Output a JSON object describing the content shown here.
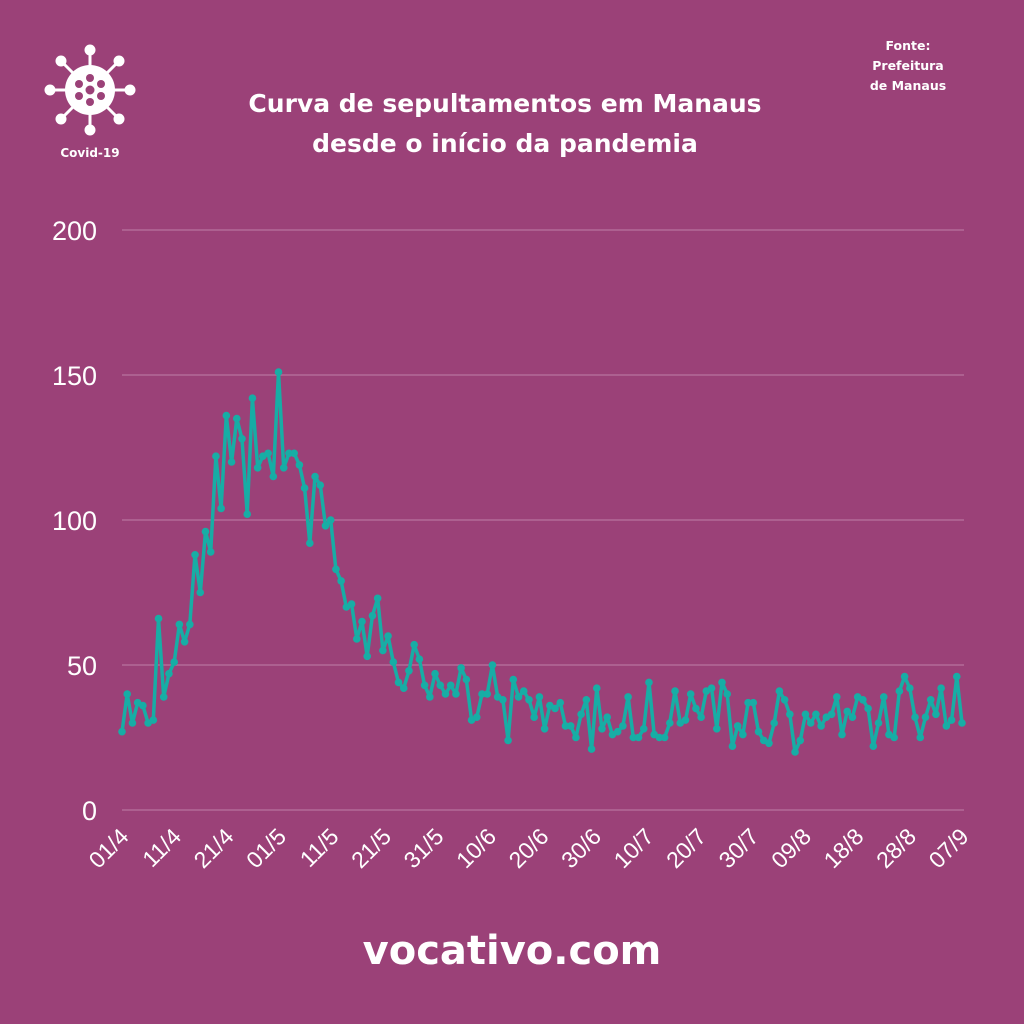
{
  "header": {
    "title_line1": "Curva de sepultamentos em Manaus",
    "title_line2": "desde o início da pandemia",
    "source_line1": "Fonte:",
    "source_line2": "Prefeitura",
    "source_line3": "de Manaus",
    "logo_label": "Covid-19",
    "logo_icon": "virus-icon"
  },
  "footer": {
    "site": "vocativo.com"
  },
  "colors": {
    "background": "#9b4178",
    "line": "#17ada5",
    "grid": "#b36a98",
    "text": "#ffffff"
  },
  "chart_data": {
    "type": "line",
    "title": "Curva de sepultamentos em Manaus desde o início da pandemia",
    "xlabel": "",
    "ylabel": "",
    "ylim": [
      0,
      200
    ],
    "yticks": [
      "0",
      "50",
      "100",
      "150",
      "200"
    ],
    "ytick_values": [
      0,
      50,
      100,
      150,
      200
    ],
    "xtick_labels": [
      "01/4",
      "11/4",
      "21/4",
      "01/5",
      "11/5",
      "21/5",
      "31/5",
      "10/6",
      "20/6",
      "30/6",
      "10/7",
      "20/7",
      "30/7",
      "09/8",
      "18/8",
      "28/8",
      "07/9"
    ],
    "grid": true,
    "series": [
      {
        "name": "Sepultamentos",
        "values": [
          27,
          40,
          30,
          37,
          36,
          30,
          31,
          66,
          39,
          47,
          51,
          64,
          58,
          64,
          88,
          75,
          96,
          89,
          122,
          104,
          136,
          120,
          135,
          128,
          102,
          142,
          118,
          122,
          123,
          115,
          151,
          118,
          123,
          123,
          119,
          111,
          92,
          115,
          112,
          98,
          100,
          83,
          79,
          70,
          71,
          59,
          65,
          53,
          67,
          73,
          55,
          60,
          51,
          44,
          42,
          48,
          57,
          52,
          43,
          39,
          47,
          43,
          40,
          43,
          40,
          49,
          45,
          31,
          32,
          40,
          40,
          50,
          39,
          38,
          24,
          45,
          39,
          41,
          38,
          32,
          39,
          28,
          36,
          35,
          37,
          29,
          29,
          25,
          33,
          38,
          21,
          42,
          28,
          32,
          26,
          27,
          29,
          39,
          25,
          25,
          28,
          44,
          26,
          25,
          25,
          30,
          41,
          30,
          31,
          40,
          35,
          32,
          41,
          42,
          28,
          44,
          40,
          22,
          29,
          26,
          37,
          37,
          27,
          24,
          23,
          30,
          41,
          38,
          33,
          20,
          24,
          33,
          30,
          33,
          29,
          32,
          33,
          39,
          26,
          34,
          32,
          39,
          38,
          35,
          22,
          30,
          39,
          26,
          25,
          41,
          46,
          42,
          32,
          25,
          32,
          38,
          33,
          42,
          29,
          31,
          46,
          30
        ]
      }
    ]
  }
}
